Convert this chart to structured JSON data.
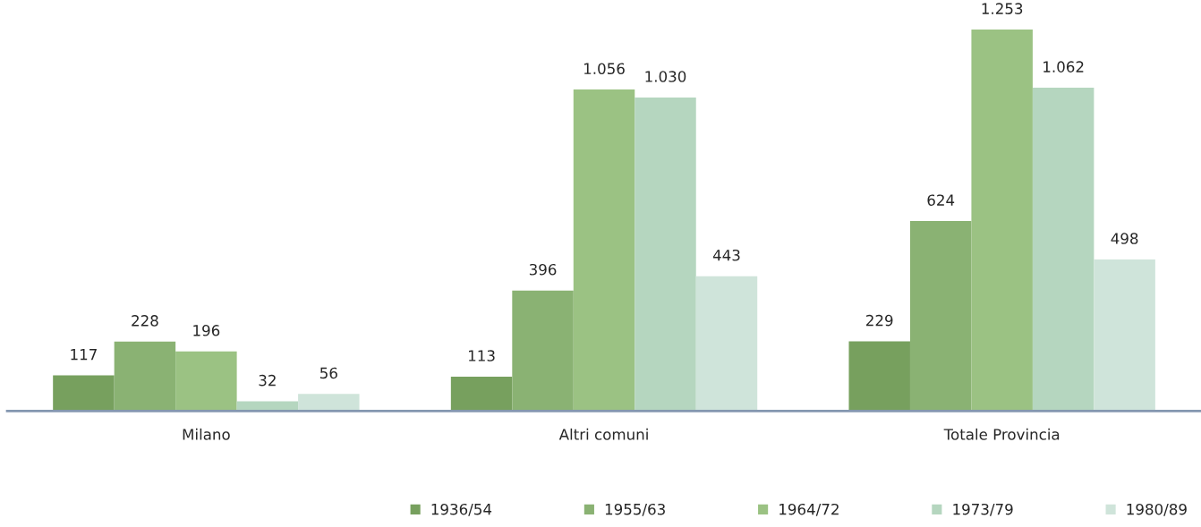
{
  "chart_data": {
    "type": "bar",
    "categories": [
      "Milano",
      "Altri comuni",
      "Totale Provincia"
    ],
    "series": [
      {
        "name": "1936/54",
        "color": "#77a05e",
        "values": [
          117,
          113,
          229
        ],
        "value_labels": [
          "117",
          "113",
          "229"
        ]
      },
      {
        "name": "1955/63",
        "color": "#8ab273",
        "values": [
          228,
          396,
          624
        ],
        "value_labels": [
          "228",
          "396",
          "624"
        ]
      },
      {
        "name": "1964/72",
        "color": "#9bc283",
        "values": [
          196,
          1056,
          1253
        ],
        "value_labels": [
          "196",
          "1.056",
          "1.253"
        ]
      },
      {
        "name": "1973/79",
        "color": "#b5d6bf",
        "values": [
          32,
          1030,
          1062
        ],
        "value_labels": [
          "32",
          "1.030",
          "1.062"
        ]
      },
      {
        "name": "1980/89",
        "color": "#cfe4da",
        "values": [
          56,
          443,
          498
        ],
        "value_labels": [
          "56",
          "443",
          "498"
        ]
      }
    ],
    "legend": "bottom",
    "grid": false
  }
}
